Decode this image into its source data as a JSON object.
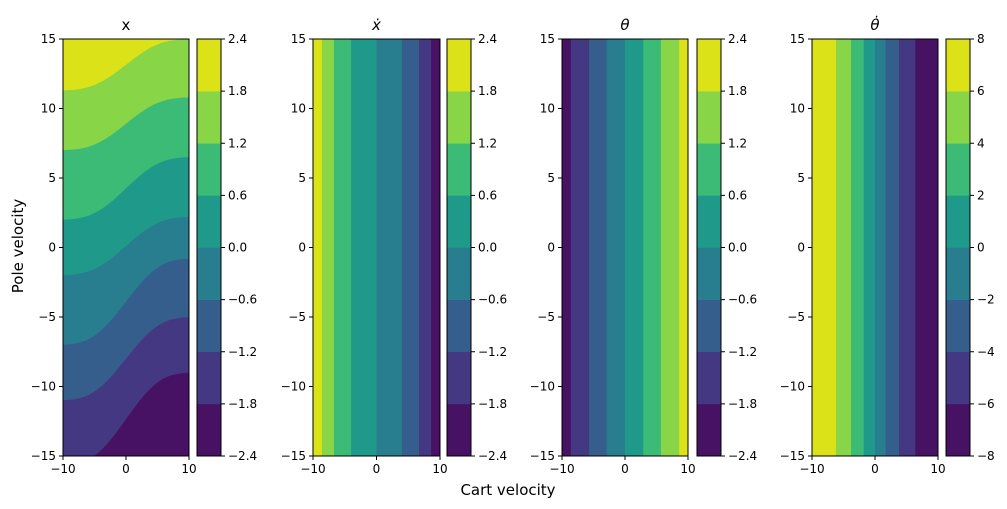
{
  "figure": {
    "xlabel": "Cart velocity",
    "ylabel": "Pole velocity",
    "palette": [
      "#440154",
      "#46327e",
      "#365c8d",
      "#277f8e",
      "#1fa187",
      "#4ac16d",
      "#a0da39",
      "#fde725"
    ],
    "contour_palette": [
      "#471164",
      "#453882",
      "#355e8d",
      "#287d8e",
      "#1f998a",
      "#3bbb75",
      "#88d548",
      "#dbe218"
    ]
  },
  "chart_data": [
    {
      "type": "heatmap",
      "title": "x",
      "title_math": false,
      "xlim": [
        -10,
        10
      ],
      "ylim": [
        -15,
        15
      ],
      "xticks": [
        -10,
        0,
        10
      ],
      "yticks": [
        -15,
        -10,
        -5,
        0,
        5,
        10,
        15
      ],
      "levels": [
        -2.4,
        -1.8,
        -1.2,
        -0.6,
        0.0,
        0.6,
        1.2,
        1.8,
        2.4
      ],
      "colorbar_ticks": [
        "−2.4",
        "−1.8",
        "−1.2",
        "−0.6",
        "0.0",
        "0.6",
        "1.2",
        "1.8",
        "2.4"
      ],
      "field": "diagonal_wave",
      "boundaries": [
        {
          "pole_velocity_at_cart_min": -15.7,
          "pole_velocity_at_cart_max": -9.0
        },
        {
          "pole_velocity_at_cart_min": -11.0,
          "pole_velocity_at_cart_max": -5.0
        },
        {
          "pole_velocity_at_cart_min": -7.0,
          "pole_velocity_at_cart_max": -0.8
        },
        {
          "pole_velocity_at_cart_min": -2.0,
          "pole_velocity_at_cart_max": 2.2
        },
        {
          "pole_velocity_at_cart_min": 2.0,
          "pole_velocity_at_cart_max": 6.5
        },
        {
          "pole_velocity_at_cart_min": 7.0,
          "pole_velocity_at_cart_max": 10.8
        },
        {
          "pole_velocity_at_cart_min": 11.3,
          "pole_velocity_at_cart_max": 15.0
        }
      ]
    },
    {
      "type": "heatmap",
      "title": "ẋ",
      "title_math": true,
      "xlim": [
        -10,
        10
      ],
      "ylim": [
        -15,
        15
      ],
      "xticks": [
        -10,
        0,
        10
      ],
      "yticks": [
        -15,
        -10,
        -5,
        0,
        5,
        10,
        15
      ],
      "levels": [
        -2.4,
        -1.8,
        -1.2,
        -0.6,
        0.0,
        0.6,
        1.2,
        1.8,
        2.4
      ],
      "colorbar_ticks": [
        "−2.4",
        "−1.8",
        "−1.2",
        "−0.6",
        "0.0",
        "0.6",
        "1.2",
        "1.8",
        "2.4"
      ],
      "field": "vertical_bands",
      "bands": [
        {
          "x0": -10.0,
          "x1": -8.6,
          "level": 7
        },
        {
          "x0": -8.6,
          "x1": -6.7,
          "level": 6
        },
        {
          "x0": -6.7,
          "x1": -4.0,
          "level": 5
        },
        {
          "x0": -4.0,
          "x1": 0.0,
          "level": 4
        },
        {
          "x0": 0.0,
          "x1": 4.0,
          "level": 3
        },
        {
          "x0": 4.0,
          "x1": 6.7,
          "level": 2
        },
        {
          "x0": 6.7,
          "x1": 8.6,
          "level": 1
        },
        {
          "x0": 8.6,
          "x1": 10.0,
          "level": 0
        }
      ]
    },
    {
      "type": "heatmap",
      "title": "θ",
      "title_math": true,
      "xlim": [
        -10,
        10
      ],
      "ylim": [
        -15,
        15
      ],
      "xticks": [
        -10,
        0,
        10
      ],
      "yticks": [
        -15,
        -10,
        -5,
        0,
        5,
        10,
        15
      ],
      "levels": [
        -2.4,
        -1.8,
        -1.2,
        -0.6,
        0.0,
        0.6,
        1.2,
        1.8,
        2.4
      ],
      "colorbar_ticks": [
        "−2.4",
        "−1.8",
        "−1.2",
        "−0.6",
        "0.0",
        "0.6",
        "1.2",
        "1.8",
        "2.4"
      ],
      "field": "vertical_bands",
      "bands": [
        {
          "x0": -10.0,
          "x1": -8.6,
          "level": 0
        },
        {
          "x0": -8.6,
          "x1": -5.7,
          "level": 1
        },
        {
          "x0": -5.7,
          "x1": -2.9,
          "level": 2
        },
        {
          "x0": -2.9,
          "x1": 0.0,
          "level": 3
        },
        {
          "x0": 0.0,
          "x1": 2.9,
          "level": 4
        },
        {
          "x0": 2.9,
          "x1": 5.7,
          "level": 5
        },
        {
          "x0": 5.7,
          "x1": 8.6,
          "level": 6
        },
        {
          "x0": 8.6,
          "x1": 10.0,
          "level": 7
        }
      ]
    },
    {
      "type": "heatmap",
      "title": "θ̇",
      "title_math": true,
      "xlim": [
        -10,
        10
      ],
      "ylim": [
        -15,
        15
      ],
      "xticks": [
        -10,
        0,
        10
      ],
      "yticks": [
        -15,
        -10,
        -5,
        0,
        5,
        10,
        15
      ],
      "levels": [
        -8,
        -6,
        -4,
        -2,
        0,
        2,
        4,
        6,
        8
      ],
      "colorbar_ticks": [
        "−8",
        "−6",
        "−4",
        "−2",
        "0",
        "2",
        "4",
        "6",
        "8"
      ],
      "field": "vertical_bands",
      "bands": [
        {
          "x0": -10.0,
          "x1": -6.2,
          "level": 7
        },
        {
          "x0": -6.2,
          "x1": -3.8,
          "level": 6
        },
        {
          "x0": -3.8,
          "x1": -1.8,
          "level": 5
        },
        {
          "x0": -1.8,
          "x1": 0.0,
          "level": 4
        },
        {
          "x0": 0.0,
          "x1": 1.7,
          "level": 3
        },
        {
          "x0": 1.7,
          "x1": 3.8,
          "level": 2
        },
        {
          "x0": 3.8,
          "x1": 6.4,
          "level": 1
        },
        {
          "x0": 6.4,
          "x1": 10.0,
          "level": 0
        }
      ]
    }
  ]
}
